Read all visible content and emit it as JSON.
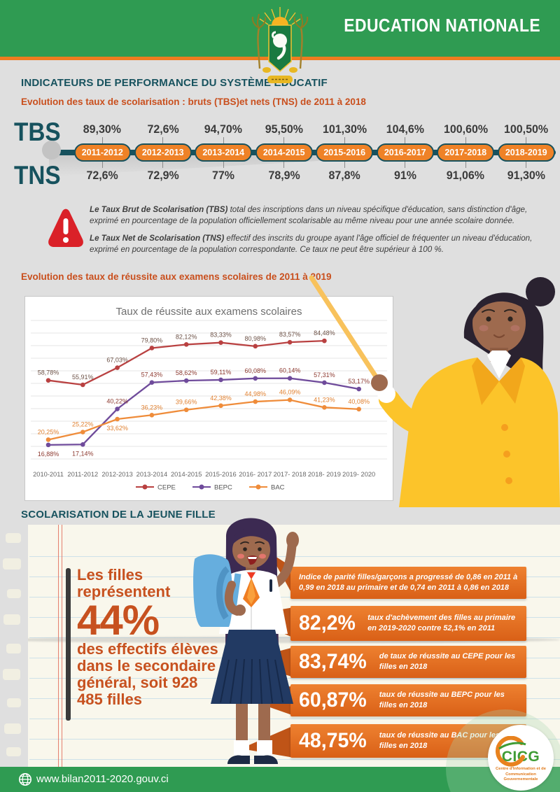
{
  "header": {
    "title": "EDUCATION NATIONALE"
  },
  "section1": {
    "title": "INDICATEURS DE PERFORMANCE DU SYSTÈME ÉDUCATIF",
    "subtitle": "Evolution des taux de scolarisation : bruts (TBS)et nets (TNS) de 2011 à 2018",
    "tbs_label": "TBS",
    "tns_label": "TNS",
    "years": [
      "2011-2012",
      "2012-2013",
      "2013-2014",
      "2014-2015",
      "2015-2016",
      "2016-2017",
      "2017-2018",
      "2018-2019"
    ],
    "tbs_values": [
      "89,30%",
      "72,6%",
      "94,70%",
      "95,50%",
      "101,30%",
      "104,6%",
      "100,60%",
      "100,50%"
    ],
    "tns_values": [
      "72,6%",
      "72,9%",
      "77%",
      "78,9%",
      "87,8%",
      "91%",
      "91,06%",
      "91,30%"
    ]
  },
  "definitions": {
    "tbs_bold": "Le Taux Brut de Scolarisation (TBS)",
    "tbs_text": " total des inscriptions dans un niveau spécifique d'éducation, sans distinction d'âge, exprimé en pourcentage de la population officiellement scolarisable au même niveau pour une année scolaire donnée.",
    "tns_bold": "Le Taux Net de Scolarisation (TNS)",
    "tns_text": " effectif des inscrits du groupe ayant l'âge officiel de fréquenter un niveau d'éducation, exprimé en pourcentage de la population correspondante. Ce taux ne peut être supérieur à 100 %."
  },
  "section2": {
    "title": "Evolution des taux de réussite aux examens scolaires de 2011 à 2019"
  },
  "chart_data": {
    "type": "line",
    "title": "Taux de réussite aux examens scolaires",
    "categories": [
      "2010-2011",
      "2011-2012",
      "2012-2013",
      "2013-2014",
      "2014-2015",
      "2015-2016",
      "2016- 2017",
      "2017- 2018",
      "2018- 2019",
      "2019- 2020"
    ],
    "series": [
      {
        "name": "CEPE",
        "color": "#b94141",
        "label_color": "#6d5247",
        "values": [
          58.78,
          55.91,
          67.03,
          79.8,
          82.12,
          83.33,
          80.98,
          83.57,
          84.48,
          null
        ],
        "labels": [
          "58,78%",
          "55,91%",
          "67,03%",
          "79,80%",
          "82,12%",
          "83,33%",
          "80,98%",
          "83,57%",
          "84,48%",
          null
        ]
      },
      {
        "name": "BEPC",
        "color": "#6f4b9b",
        "label_color": "#8d3a30",
        "values": [
          16.88,
          17.14,
          40.22,
          57.43,
          58.62,
          59.11,
          60.08,
          60.14,
          57.31,
          53.17
        ],
        "labels": [
          "16,88%",
          "17,14%",
          "40,22%",
          "57,43%",
          "58,62%",
          "59,11%",
          "60,08%",
          "60,14%",
          "57,31%",
          "53,17%"
        ]
      },
      {
        "name": "BAC",
        "color": "#ef8c3a",
        "label_color": "#e08030",
        "values": [
          20.25,
          25.22,
          33.62,
          36.23,
          39.66,
          42.38,
          44.98,
          46.09,
          41.23,
          40.08
        ],
        "labels": [
          "20,25%",
          "25,22%",
          "33,62%",
          "36,23%",
          "39,66%",
          "42,38%",
          "44,98%",
          "46,09%",
          "41,23%",
          "40,08%"
        ]
      }
    ],
    "ylim": [
      10,
      95
    ],
    "grid": true,
    "legend_position": "bottom"
  },
  "section3": {
    "title": "SCOLARISATION DE LA JEUNE FILLE",
    "highlight": {
      "line1": "Les filles",
      "line2": "représentent",
      "big": "44%",
      "rest": "des effectifs élèves dans le secondaire général, soit 928 485 filles"
    },
    "banners": [
      {
        "value": "",
        "text": "Indice de parité filles/garçons a progressé de 0,86 en 2011 à 0,99 en 2018 au primaire et de 0,74 en 2011 à 0,86 en 2018"
      },
      {
        "value": "82,2%",
        "text": "taux d'achèvement des filles au primaire en 2019-2020 contre 52,1% en 2011"
      },
      {
        "value": "83,74%",
        "text": "de taux de réussite au CEPE pour les filles en 2018"
      },
      {
        "value": "60,87%",
        "text": "taux de réussite au BEPC pour les filles en 2018"
      },
      {
        "value": "48,75%",
        "text": "taux de réussite au BAC pour les filles en 2018"
      }
    ]
  },
  "logo": {
    "name": "CICG",
    "subtext": "Centre d'Information et de Communication Gouvernementale"
  },
  "footer": {
    "url": "www.bilan2011-2020.gouv.ci"
  },
  "colors": {
    "header_green": "#2f9b52",
    "accent_orange": "#ee7c1f",
    "title_teal": "#17525e",
    "title_rust": "#c94f1d",
    "banner_orange": "#d96017",
    "paper": "#f9f7ec",
    "warning_red": "#da2128"
  }
}
